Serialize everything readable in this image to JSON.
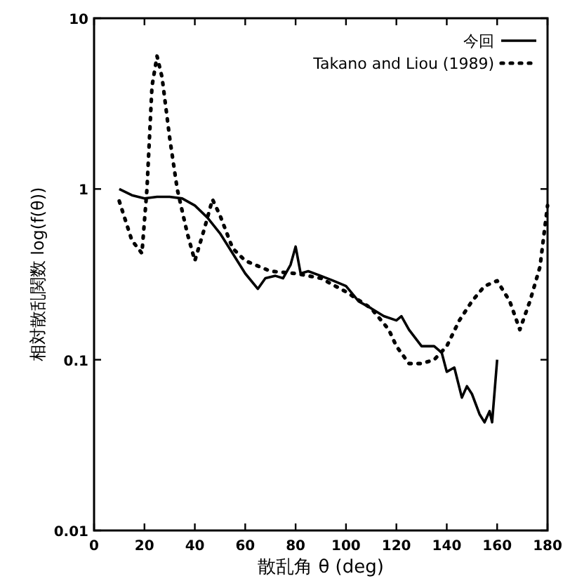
{
  "chart_data": {
    "type": "line",
    "xlabel": "散乱角 θ (deg)",
    "ylabel": "相対散乱関数 log(f(θ))",
    "log": "y",
    "xlim": [
      0,
      180
    ],
    "xticks": [
      0,
      20,
      40,
      60,
      80,
      100,
      120,
      140,
      160,
      180
    ],
    "ylim": [
      0.01,
      10
    ],
    "yticks": [
      0.01,
      0.1,
      1,
      10
    ],
    "legend": "top right",
    "grid": false,
    "marker": "none",
    "series": [
      {
        "name": "今回",
        "color": "#000000",
        "line_style": "solid",
        "x": [
          10,
          15,
          20,
          25,
          30,
          35,
          40,
          45,
          50,
          55,
          60,
          65,
          68,
          72,
          75,
          78,
          80,
          82,
          85,
          90,
          95,
          100,
          105,
          110,
          115,
          120,
          122,
          125,
          130,
          135,
          138,
          140,
          143,
          146,
          148,
          150,
          153,
          155,
          157,
          158,
          160
        ],
        "values": [
          1.0,
          0.92,
          0.88,
          0.9,
          0.9,
          0.88,
          0.8,
          0.68,
          0.55,
          0.42,
          0.32,
          0.26,
          0.3,
          0.31,
          0.3,
          0.36,
          0.46,
          0.32,
          0.33,
          0.31,
          0.29,
          0.27,
          0.22,
          0.2,
          0.18,
          0.17,
          0.18,
          0.15,
          0.12,
          0.12,
          0.11,
          0.085,
          0.09,
          0.06,
          0.07,
          0.063,
          0.048,
          0.043,
          0.05,
          0.043,
          0.1
        ]
      },
      {
        "name": "Takano and Liou (1989)",
        "color": "#000000",
        "line_style": "dotted",
        "x": [
          10,
          15,
          19,
          21,
          23,
          25,
          27,
          30,
          33,
          37,
          40,
          44,
          47,
          50,
          55,
          60,
          70,
          80,
          90,
          100,
          110,
          117,
          120,
          125,
          130,
          135,
          140,
          145,
          150,
          155,
          160,
          165,
          169,
          173,
          177,
          180
        ],
        "values": [
          0.85,
          0.5,
          0.42,
          1.0,
          4,
          6,
          4.5,
          2,
          1,
          0.55,
          0.38,
          0.6,
          0.87,
          0.7,
          0.45,
          0.38,
          0.33,
          0.32,
          0.3,
          0.25,
          0.2,
          0.15,
          0.12,
          0.095,
          0.095,
          0.1,
          0.12,
          0.17,
          0.22,
          0.27,
          0.29,
          0.22,
          0.15,
          0.22,
          0.35,
          0.8
        ]
      }
    ]
  }
}
